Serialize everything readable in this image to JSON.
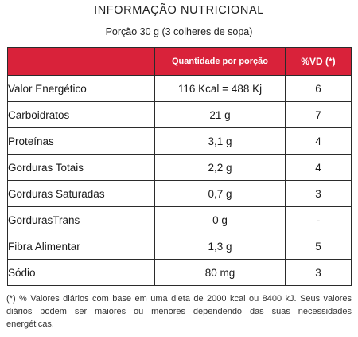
{
  "header": {
    "title": "INFORMAÇÃO  NUTRICIONAL",
    "subtitle": "Porção 30 g (3 colheres de sopa)"
  },
  "table": {
    "columns": [
      "",
      "Quantidade por porção",
      "%VD (*)"
    ],
    "rows": [
      {
        "nutrient": "Valor Energético",
        "quantity": "116 Kcal = 488 Kj",
        "vd": "6"
      },
      {
        "nutrient": "Carboidratos",
        "quantity": "21 g",
        "vd": "7"
      },
      {
        "nutrient": "Proteínas",
        "quantity": "3,1 g",
        "vd": "4"
      },
      {
        "nutrient": "Gorduras Totais",
        "quantity": "2,2 g",
        "vd": "4"
      },
      {
        "nutrient": "Gorduras Saturadas",
        "quantity": "0,7 g",
        "vd": "3"
      },
      {
        "nutrient": "GordurasTrans",
        "quantity": "0 g",
        "vd": "-"
      },
      {
        "nutrient": "Fibra Alimentar",
        "quantity": "1,3 g",
        "vd": "5"
      },
      {
        "nutrient": "Sódio",
        "quantity": "80 mg",
        "vd": "3"
      }
    ]
  },
  "footnote": "(*) % Valores diários com base em uma dieta de 2000 kcal ou 8400 kJ. Seus valores diários podem ser maiores ou menores dependendo das suas necessidades energéticas.",
  "colors": {
    "header_bg": "#d9223a",
    "header_text": "#ffffff",
    "border": "#2b2b2b"
  }
}
